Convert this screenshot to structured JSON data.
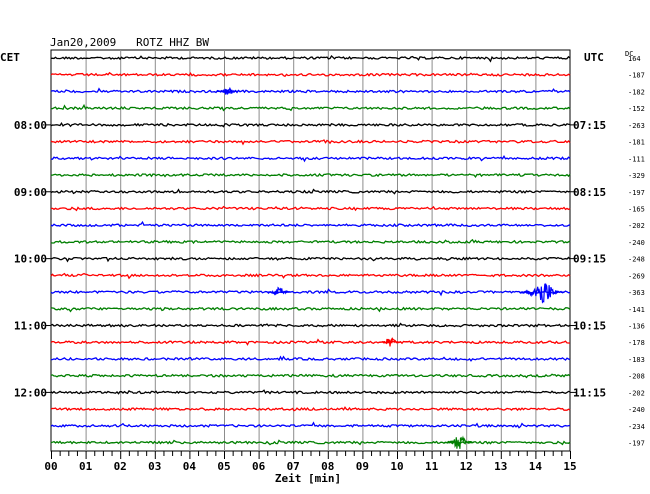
{
  "chart_data": {
    "type": "line",
    "title": "Jan20,2009   ROTZ HHZ BW",
    "left_axis_label": "CET",
    "right_axis_label": "UTC",
    "dc_label": "DC",
    "xlabel": "Zeit [min]",
    "x_ticks": [
      "00",
      "01",
      "02",
      "03",
      "04",
      "05",
      "06",
      "07",
      "08",
      "09",
      "10",
      "11",
      "12",
      "13",
      "14",
      "15"
    ],
    "xlim": [
      0,
      15
    ],
    "grid": true,
    "trace_colors": [
      "#000000",
      "#ff0000",
      "#0000ff",
      "#007f00"
    ],
    "left_time_labels": [
      {
        "trace": 4,
        "label": "08:00"
      },
      {
        "trace": 8,
        "label": "09:00"
      },
      {
        "trace": 12,
        "label": "10:00"
      },
      {
        "trace": 16,
        "label": "11:00"
      },
      {
        "trace": 20,
        "label": "12:00"
      }
    ],
    "right_time_labels": [
      {
        "trace": 4,
        "label": "07:15"
      },
      {
        "trace": 8,
        "label": "08:15"
      },
      {
        "trace": 12,
        "label": "09:15"
      },
      {
        "trace": 16,
        "label": "10:15"
      },
      {
        "trace": 20,
        "label": "11:15"
      }
    ],
    "dc_offsets": [
      "164",
      "-187",
      "-182",
      "-152",
      "-263",
      "-181",
      "-111",
      "-329",
      "-197",
      "-165",
      "-202",
      "-240",
      "-248",
      "-269",
      "-363",
      "-141",
      "-136",
      "-178",
      "-183",
      "-208",
      "-202",
      "-240",
      "-234",
      "-197"
    ],
    "events": [
      {
        "trace": 14,
        "minute": 14.2,
        "amplitude": 1.0
      },
      {
        "trace": 14,
        "minute": 6.6,
        "amplitude": 0.25
      },
      {
        "trace": 23,
        "minute": 11.8,
        "amplitude": 0.5
      },
      {
        "trace": 17,
        "minute": 9.8,
        "amplitude": 0.25
      },
      {
        "trace": 2,
        "minute": 5.1,
        "amplitude": 0.2
      }
    ]
  }
}
